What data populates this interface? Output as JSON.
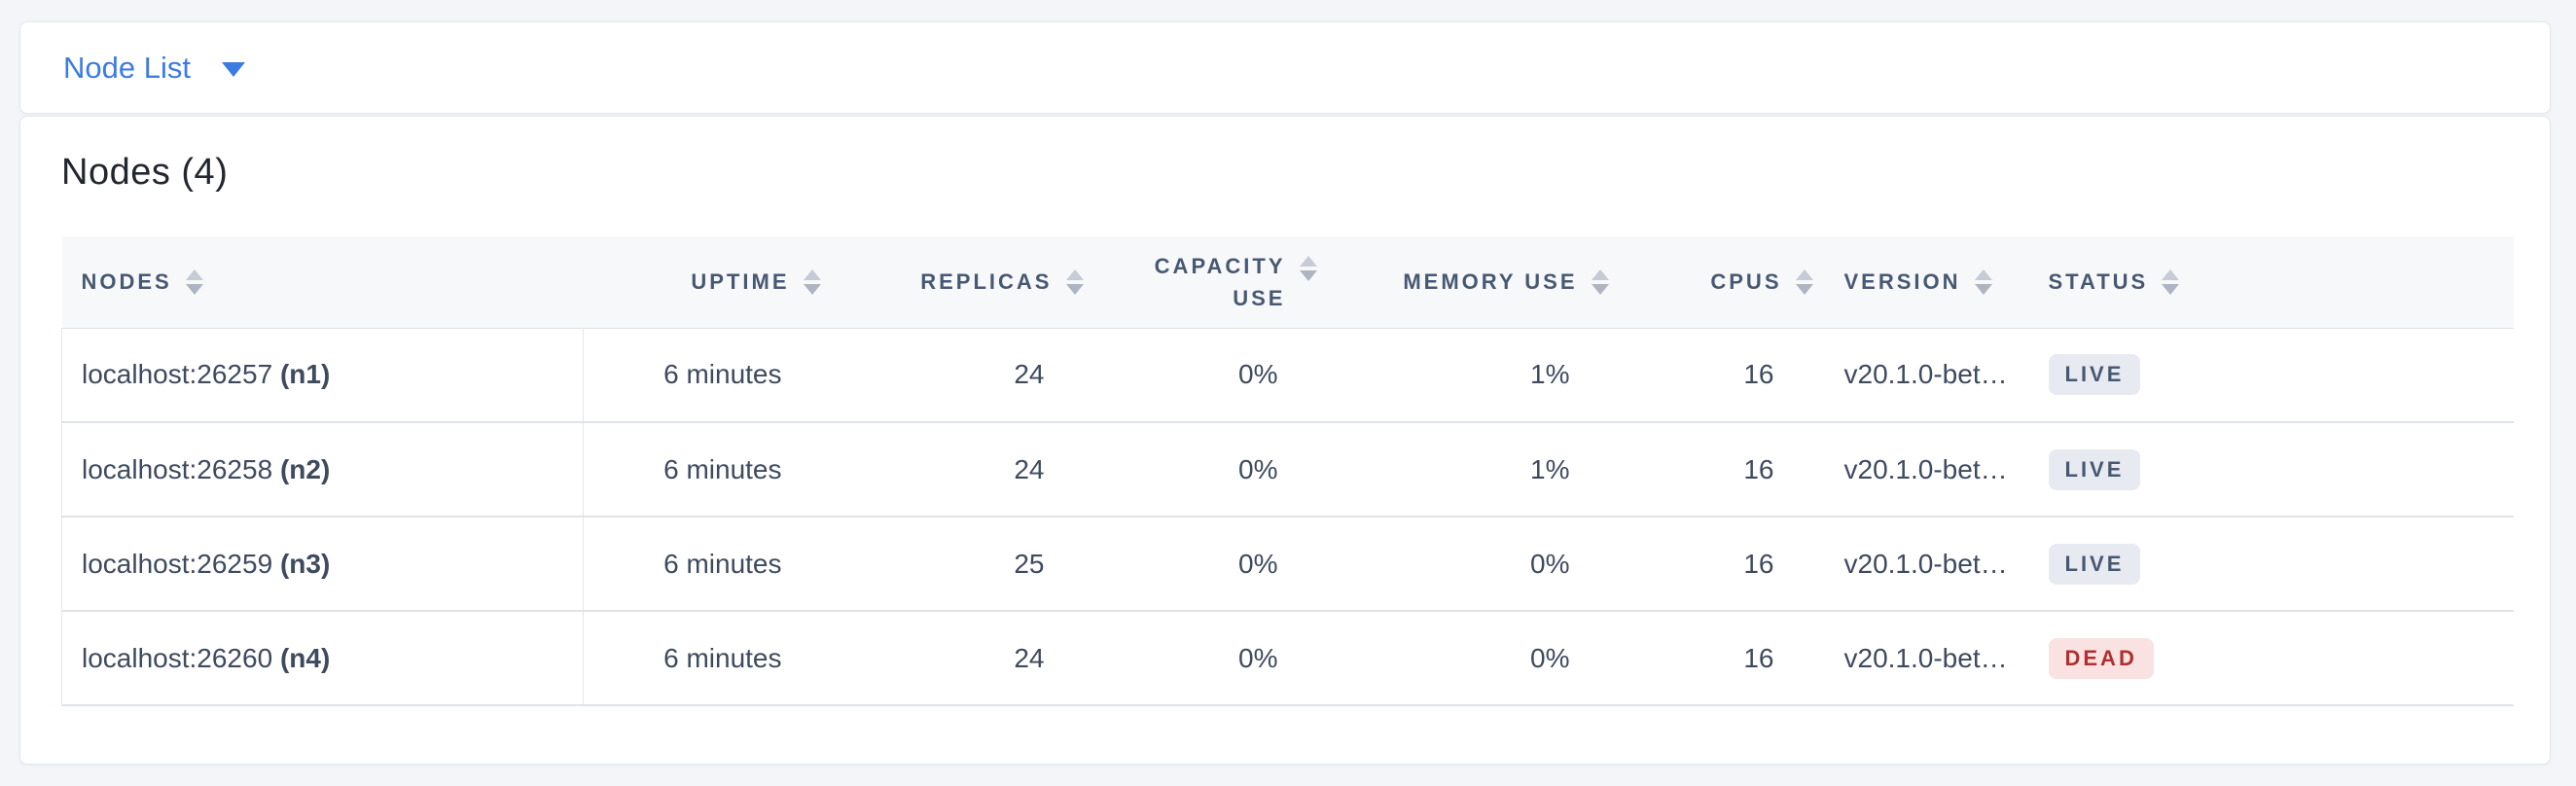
{
  "topbar": {
    "title": "Node List",
    "caret_icon": "caret-down-icon",
    "link_color": "#3b7ce2"
  },
  "card": {
    "heading": "Nodes (4)",
    "table": {
      "columns": [
        {
          "label": "NODES",
          "align": "left"
        },
        {
          "label": "UPTIME",
          "align": "right"
        },
        {
          "label": "REPLICAS",
          "align": "right"
        },
        {
          "label": "CAPACITY USE",
          "align": "right"
        },
        {
          "label": "MEMORY USE",
          "align": "right"
        },
        {
          "label": "CPUS",
          "align": "right"
        },
        {
          "label": "VERSION",
          "align": "left"
        },
        {
          "label": "STATUS",
          "align": "left"
        }
      ],
      "rows": [
        {
          "address": "localhost:26257",
          "node_id": "(n1)",
          "uptime": "6 minutes",
          "replicas": "24",
          "capacity_use": "0%",
          "memory_use": "1%",
          "cpus": "16",
          "version": "v20.1.0-bet…",
          "status": "LIVE"
        },
        {
          "address": "localhost:26258",
          "node_id": "(n2)",
          "uptime": "6 minutes",
          "replicas": "24",
          "capacity_use": "0%",
          "memory_use": "1%",
          "cpus": "16",
          "version": "v20.1.0-bet…",
          "status": "LIVE"
        },
        {
          "address": "localhost:26259",
          "node_id": "(n3)",
          "uptime": "6 minutes",
          "replicas": "25",
          "capacity_use": "0%",
          "memory_use": "0%",
          "cpus": "16",
          "version": "v20.1.0-bet…",
          "status": "LIVE"
        },
        {
          "address": "localhost:26260",
          "node_id": "(n4)",
          "uptime": "6 minutes",
          "replicas": "24",
          "capacity_use": "0%",
          "memory_use": "0%",
          "cpus": "16",
          "version": "v20.1.0-bet…",
          "status": "DEAD"
        }
      ]
    }
  },
  "colors": {
    "page_background": "#f4f5f9",
    "link_blue": "#3b7ce2",
    "header_text": "#475872",
    "row_text": "#3e4a5e",
    "live_badge_bg": "#e8eaf1",
    "live_badge_text": "#475872",
    "dead_badge_bg": "#fbe2e2",
    "dead_badge_text": "#b02f2f"
  }
}
